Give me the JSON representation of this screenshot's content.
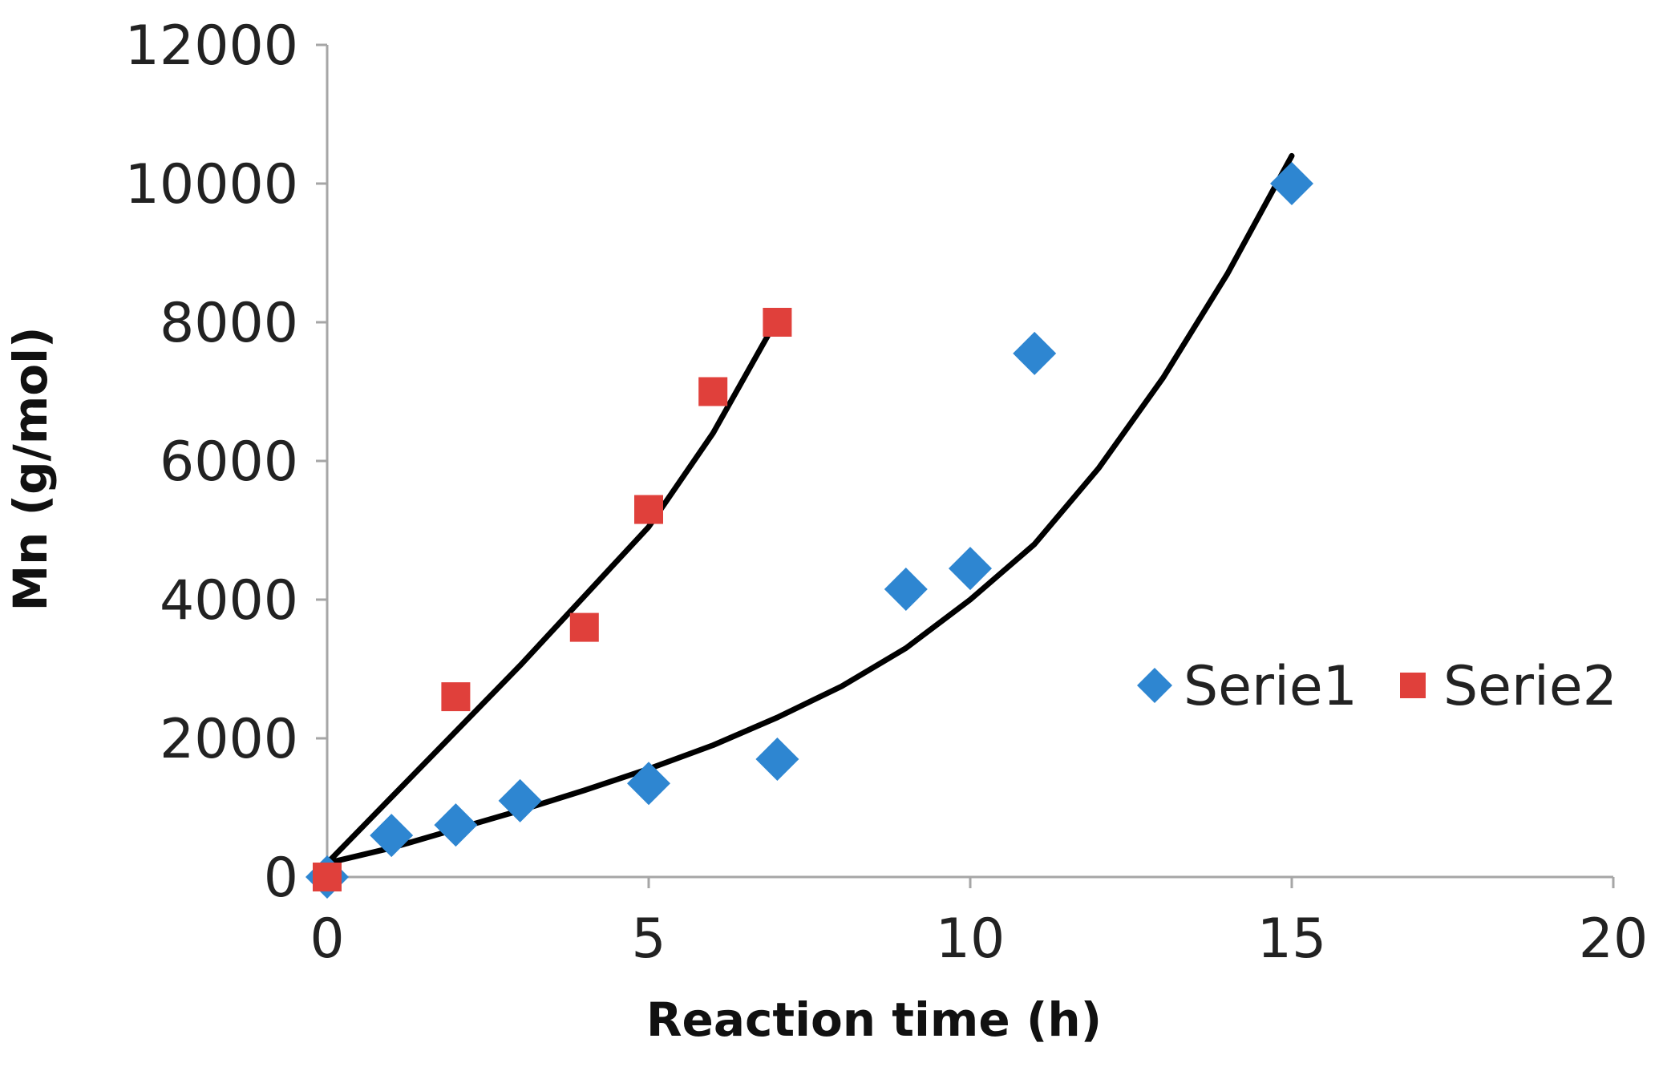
{
  "chart_data": {
    "type": "scatter",
    "title": "",
    "xlabel": "Reaction time (h)",
    "ylabel": "Mn (g/mol)",
    "xlim": [
      0,
      20
    ],
    "ylim": [
      0,
      12000
    ],
    "xticks": [
      0,
      5,
      10,
      15,
      20
    ],
    "yticks": [
      0,
      2000,
      4000,
      6000,
      8000,
      10000,
      12000
    ],
    "grid": false,
    "legend_position": "right",
    "series": [
      {
        "name": "Serie1",
        "marker": "diamond",
        "color": "#2E86D1",
        "points": [
          [
            0,
            0
          ],
          [
            1,
            600
          ],
          [
            2,
            750
          ],
          [
            3,
            1100
          ],
          [
            5,
            1350
          ],
          [
            7,
            1700
          ],
          [
            9,
            4150
          ],
          [
            10,
            4450
          ],
          [
            11,
            7550
          ],
          [
            15,
            10000
          ]
        ],
        "trendline": {
          "type": "polynomial",
          "x": [
            0,
            1,
            2,
            3,
            4,
            5,
            6,
            7,
            8,
            9,
            10,
            11,
            12,
            13,
            14,
            15
          ],
          "y": [
            200,
            420,
            690,
            960,
            1250,
            1560,
            1900,
            2300,
            2750,
            3300,
            4000,
            4800,
            5900,
            7200,
            8700,
            10400
          ]
        }
      },
      {
        "name": "Serie2",
        "marker": "square",
        "color": "#E0403B",
        "points": [
          [
            0,
            0
          ],
          [
            2,
            2600
          ],
          [
            4,
            3600
          ],
          [
            5,
            5300
          ],
          [
            6,
            7000
          ],
          [
            7,
            8000
          ]
        ],
        "trendline": {
          "type": "polynomial",
          "x": [
            0,
            1,
            2,
            3,
            4,
            5,
            6,
            7
          ],
          "y": [
            200,
            1150,
            2100,
            3050,
            4050,
            5050,
            6400,
            8050
          ]
        }
      }
    ]
  }
}
